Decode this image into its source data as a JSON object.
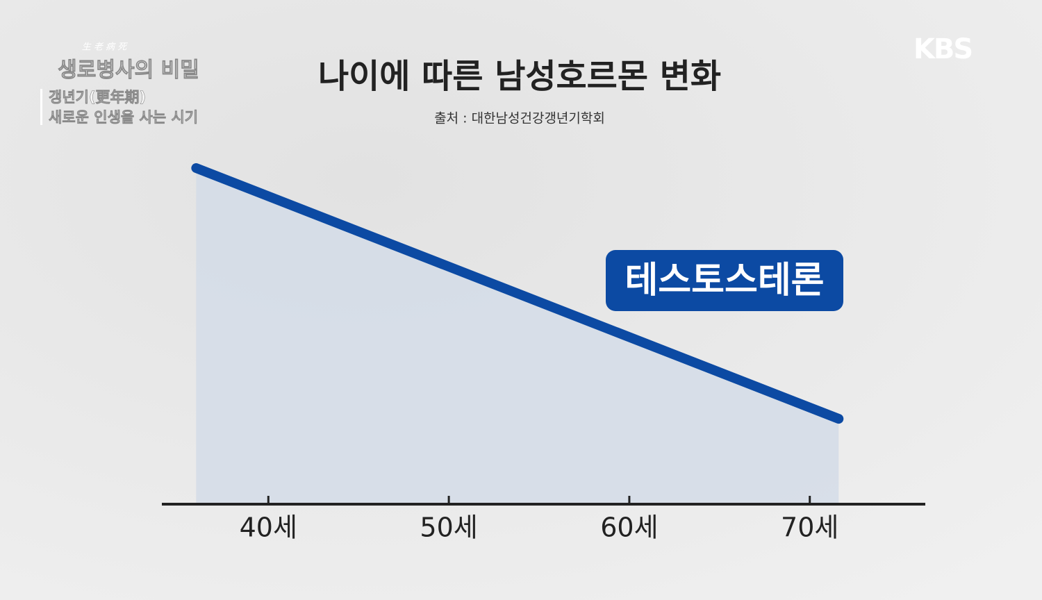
{
  "chart_data": {
    "type": "area",
    "title": "나이에 따른 남성호르몬 변화",
    "subtitle": "출처 : 대한남성건강갱년기학회",
    "x": [
      36,
      71.6
    ],
    "series": [
      {
        "name": "테스토스테론",
        "color": "#0c4aa3",
        "values": [
          100,
          25.4
        ]
      }
    ],
    "xlim": [
      34.1,
      76.4
    ],
    "xticks": [
      {
        "value": 40,
        "label": "40세"
      },
      {
        "value": 50,
        "label": "50세"
      },
      {
        "value": 60,
        "label": "60세"
      },
      {
        "value": 70,
        "label": "70세"
      }
    ],
    "ylim": [
      0,
      100
    ],
    "fill_color": "#d3dce8"
  },
  "overlay": {
    "program_hanja": "生 老 病 死",
    "program_title": "생로병사의 비밀",
    "episode_line1": "갱년기(更年期)",
    "episode_line2": "새로운 인생을 사는 시기",
    "channel": "KBS"
  }
}
